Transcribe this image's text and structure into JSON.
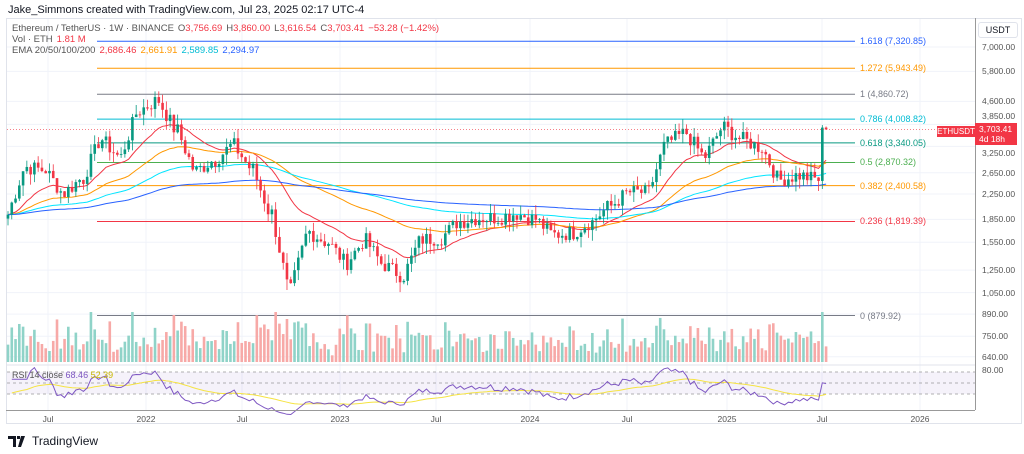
{
  "header": {
    "creator": "Jake_Simmons created with TradingView.com, Jul 23, 2025 02:17 UTC-4"
  },
  "legend": {
    "symbol": "Ethereum / TetherUS · 1W · BINANCE",
    "o_label": "O",
    "open": "3,756.69",
    "h_label": "H",
    "high": "3,860.00",
    "l_label": "L",
    "low": "3,616.54",
    "c_label": "C",
    "close": "3,703.41",
    "change": "−53.28 (−1.42%)",
    "vol_label": "Vol · ETH",
    "vol": "1.81 M",
    "ema_label": "EMA 20/50/100/200",
    "ema20": "2,686.46",
    "ema50": "2,661.91",
    "ema100": "2,589.85",
    "ema200": "2,294.97"
  },
  "colors": {
    "up": "#089981",
    "down": "#f23645",
    "ema20": "#f23645",
    "ema50": "#ff9800",
    "ema100": "#00e5ff",
    "ema200": "#2962ff",
    "rsi": "#7e57c2",
    "rsi_ma": "#f5e342"
  },
  "price_axis": {
    "currency": "USDT",
    "labels": [
      "7,000.00",
      "5,800.00",
      "4,600.00",
      "3,850.00",
      "3,250.00",
      "2,650.00",
      "2,250.00",
      "1,850.00",
      "1,550.00",
      "1,250.00",
      "1,050.00",
      "890.00",
      "750.00",
      "640.00"
    ],
    "rsi_label": "80.00"
  },
  "last_price": {
    "symbol": "ETHUSDT",
    "price": "3,703.41",
    "countdown": "4d 18h"
  },
  "time_axis": [
    "Jul",
    "2022",
    "Jul",
    "2023",
    "Jul",
    "2024",
    "Jul",
    "2025",
    "Jul",
    "2026"
  ],
  "fib_levels": [
    {
      "label": "1.618 (7,320.85)",
      "price": 7320.85,
      "color": "#2962ff"
    },
    {
      "label": "1.272 (5,943.49)",
      "price": 5943.49,
      "color": "#ff9800"
    },
    {
      "label": "1 (4,860.72)",
      "price": 4860.72,
      "color": "#787b86"
    },
    {
      "label": "0.786 (4,008.82)",
      "price": 4008.82,
      "color": "#00bcd4"
    },
    {
      "label": "0.618 (3,340.05)",
      "price": 3340.05,
      "color": "#089981"
    },
    {
      "label": "0.5 (2,870.32)",
      "price": 2870.32,
      "color": "#4caf50"
    },
    {
      "label": "0.382 (2,400.58)",
      "price": 2400.58,
      "color": "#ff9800"
    },
    {
      "label": "0.236 (1,819.39)",
      "price": 1819.39,
      "color": "#f23645"
    },
    {
      "label": "0 (879.92)",
      "price": 879.92,
      "color": "#787b86"
    }
  ],
  "rsi": {
    "label": "RSI 14 close",
    "value": "68.46",
    "ma": "52.39"
  },
  "footer": {
    "logo": "TradingView"
  },
  "chart_data": {
    "type": "candlestick",
    "scale": "log",
    "ylim": [
      600,
      7800
    ],
    "interval": "1W",
    "monthly_closes": {
      "start": "2021-03",
      "values": [
        1920,
        2770,
        2710,
        2270,
        2530,
        3430,
        3000,
        4290,
        4630,
        3680,
        2690,
        2920,
        3280,
        2730,
        1940,
        1070,
        1680,
        1550,
        1330,
        1570,
        1300,
        1200,
        1585,
        1605,
        1820,
        1870,
        1875,
        1935,
        1855,
        1645,
        1670,
        1815,
        2050,
        2280,
        2280,
        3340,
        3600,
        3010,
        3760,
        3430,
        3230,
        2510,
        2600,
        2520,
        3700,
        3330,
        3300,
        2240,
        1820,
        1790,
        2530,
        2490,
        3703.41
      ]
    }
  }
}
